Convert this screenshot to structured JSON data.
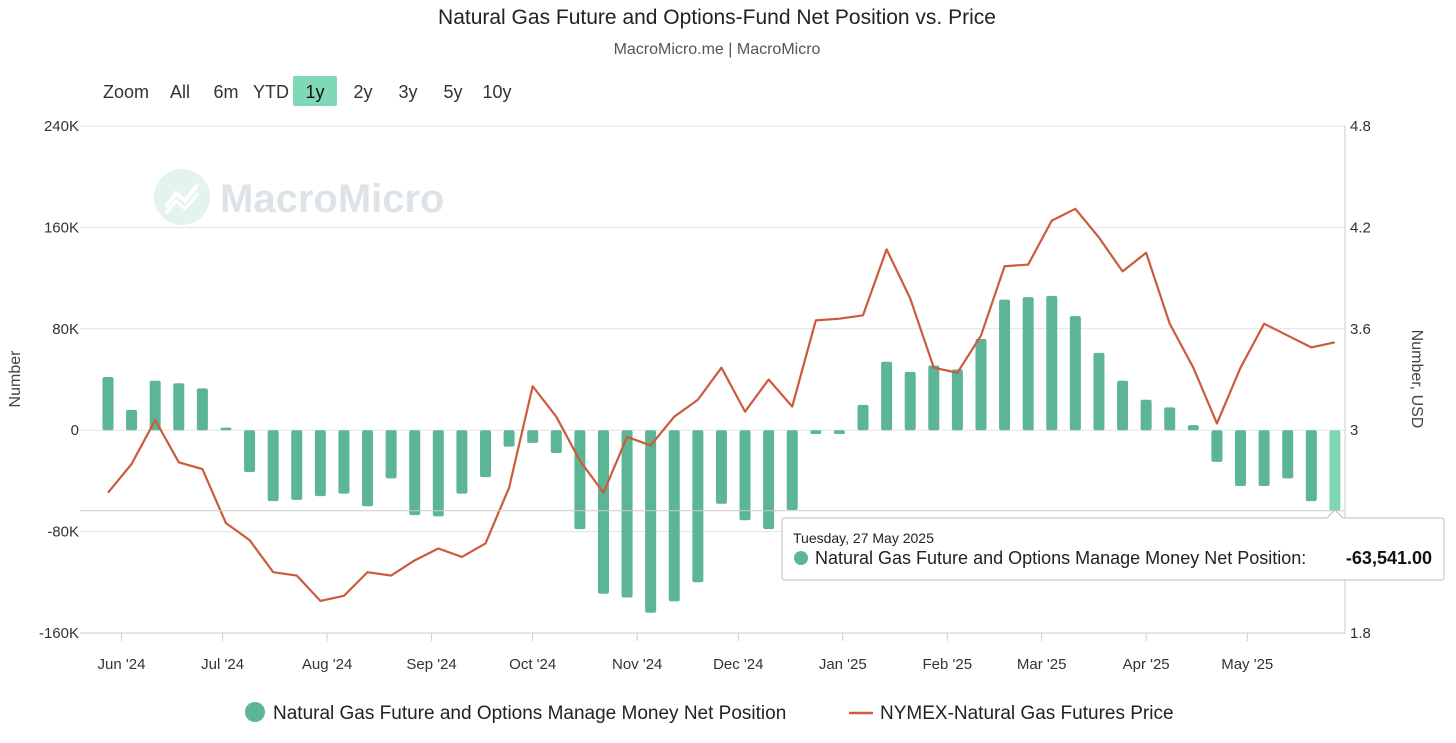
{
  "colors": {
    "bar": "#5cb595",
    "bar_highlight": "#7fd6b5",
    "line": "#cc5a3c",
    "grid": "#e2e2e2",
    "button_active": "#7fd8b6",
    "watermark": "#dde3e6"
  },
  "range_selector": {
    "zoom_label": "Zoom",
    "buttons": [
      "All",
      "6m",
      "YTD",
      "1y",
      "2y",
      "3y",
      "5y",
      "10y"
    ],
    "active": "1y"
  },
  "watermark": {
    "text": "MacroMicro",
    "icon": "macromicro-logo-icon"
  },
  "tooltip": {
    "date": "Tuesday, 27 May 2025",
    "series": "Natural Gas Future and Options Manage Money Net Position:",
    "value": "-63,541.00"
  },
  "chart_data": {
    "type": "bar",
    "title": "Natural Gas Future and Options-Fund Net Position vs. Price",
    "subtitle": "MacroMicro.me | MacroMicro",
    "ylabel_left": "Number",
    "ylabel_right": "Number, USD",
    "ylim_left": [
      -160000,
      240000
    ],
    "ylim_right": [
      1.8,
      4.8
    ],
    "left_ticks": [
      "240K",
      "160K",
      "80K",
      "0",
      "-80K",
      "-160K"
    ],
    "left_tick_values": [
      240000,
      160000,
      80000,
      0,
      -80000,
      -160000
    ],
    "right_ticks": [
      "4.8",
      "4.2",
      "3.6",
      "3",
      "1.8"
    ],
    "right_tick_values": [
      4.8,
      4.2,
      3.6,
      3.0,
      1.8
    ],
    "x_range": [
      "2024-05-28",
      "2025-05-30"
    ],
    "x_ticks": [
      {
        "label": "Jun '24",
        "date": "2024-06-01"
      },
      {
        "label": "Jul '24",
        "date": "2024-07-01"
      },
      {
        "label": "Aug '24",
        "date": "2024-08-01"
      },
      {
        "label": "Sep '24",
        "date": "2024-09-01"
      },
      {
        "label": "Oct '24",
        "date": "2024-10-01"
      },
      {
        "label": "Nov '24",
        "date": "2024-11-01"
      },
      {
        "label": "Dec '24",
        "date": "2024-12-01"
      },
      {
        "label": "Jan '25",
        "date": "2025-01-01"
      },
      {
        "label": "Feb '25",
        "date": "2025-02-01"
      },
      {
        "label": "Mar '25",
        "date": "2025-03-01"
      },
      {
        "label": "Apr '25",
        "date": "2025-04-01"
      },
      {
        "label": "May '25",
        "date": "2025-05-01"
      }
    ],
    "series": [
      {
        "name": "Natural Gas Future and Options Manage Money Net Position",
        "type": "bar",
        "axis": "left",
        "start_date": "2024-05-28",
        "interval_days": 7,
        "values": [
          42000,
          16000,
          39000,
          37000,
          33000,
          2000,
          -33000,
          -56000,
          -55000,
          -52000,
          -50000,
          -60000,
          -38000,
          -67000,
          -68000,
          -50000,
          -37000,
          -13000,
          -10000,
          -18000,
          -78000,
          -129000,
          -132000,
          -144000,
          -135000,
          -120000,
          -58000,
          -71000,
          -78000,
          -63000,
          -3000,
          -3000,
          20000,
          54000,
          46000,
          51000,
          48000,
          72000,
          103000,
          105000,
          106000,
          90000,
          61000,
          39000,
          24000,
          18000,
          4000,
          -25000,
          -44000,
          -44000,
          -38000,
          -56000,
          -63541
        ]
      },
      {
        "name": "NYMEX-Natural Gas Futures Price",
        "type": "line",
        "axis": "right",
        "start_date": "2024-05-28",
        "interval_days": 7,
        "values": [
          2.63,
          2.8,
          3.06,
          2.81,
          2.77,
          2.45,
          2.35,
          2.16,
          2.14,
          1.99,
          2.02,
          2.16,
          2.14,
          2.23,
          2.3,
          2.25,
          2.33,
          2.66,
          3.26,
          3.08,
          2.82,
          2.63,
          2.96,
          2.91,
          3.08,
          3.18,
          3.37,
          3.11,
          3.3,
          3.14,
          3.65,
          3.66,
          3.68,
          4.07,
          3.78,
          3.37,
          3.34,
          3.56,
          3.97,
          3.98,
          4.24,
          4.31,
          4.14,
          3.94,
          4.05,
          3.63,
          3.37,
          3.04,
          3.37,
          3.63,
          3.56,
          3.49,
          3.52
        ]
      }
    ],
    "legend": [
      "Natural Gas Future and Options Manage Money Net Position",
      "NYMEX-Natural Gas Futures Price"
    ],
    "legend_position": "bottom",
    "highlighted_point": {
      "date": "2025-05-27",
      "value": -63541
    }
  }
}
